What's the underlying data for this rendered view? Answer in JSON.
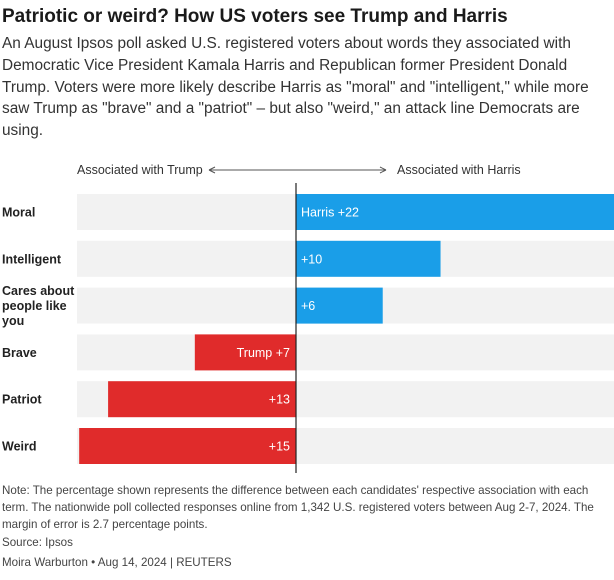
{
  "header": {
    "title": "Patriotic or weird? How US voters see Trump and Harris",
    "subtitle": "An August Ipsos poll asked U.S. registered voters about words they associated with Democratic Vice President Kamala Harris and Republican former President Donald Trump. Voters were more likely describe Harris as \"moral\" and \"intelligent,\" while more saw Trump as \"brave\" and a \"patriot\" – but also \"weird,\" an attack line Democrats are using."
  },
  "chart_data": {
    "type": "bar",
    "orientation": "horizontal-diverging",
    "left_label": "Associated with Trump",
    "right_label": "Associated with Harris",
    "xlim": [
      -15,
      22
    ],
    "colors": {
      "trump": "#e02b2b",
      "harris": "#1a9ee8",
      "background": "#f2f2f2"
    },
    "rows": [
      {
        "label": "Moral",
        "side": "harris",
        "value": 22,
        "value_label": "Harris +22"
      },
      {
        "label": "Intelligent",
        "side": "harris",
        "value": 10,
        "value_label": "+10"
      },
      {
        "label": "Cares about people like you",
        "label_lines": [
          "Cares about",
          "people like",
          "you"
        ],
        "side": "harris",
        "value": 6,
        "value_label": "+6"
      },
      {
        "label": "Brave",
        "side": "trump",
        "value": 7,
        "value_label": "Trump +7"
      },
      {
        "label": "Patriot",
        "side": "trump",
        "value": 13,
        "value_label": "+13"
      },
      {
        "label": "Weird",
        "side": "trump",
        "value": 15,
        "value_label": "+15"
      }
    ]
  },
  "footer": {
    "note": "Note: The percentage shown represents the difference between each candidates' respective association with each term. The nationwide poll collected responses online from 1,342 U.S. registered voters between Aug 2-7, 2024. The margin of error is 2.7 percentage points.",
    "source": "Source: Ipsos",
    "credit": "Moira Warburton • Aug 14, 2024 | REUTERS"
  }
}
